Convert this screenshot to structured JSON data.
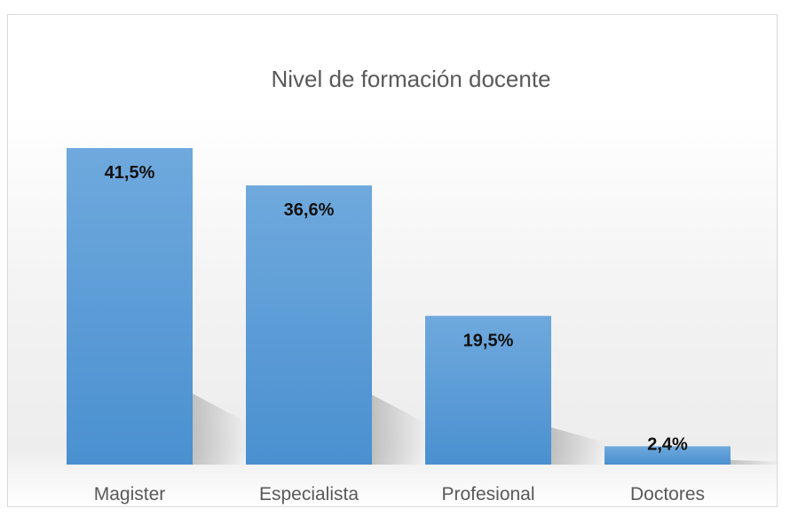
{
  "chart_data": {
    "type": "bar",
    "title": "Nivel de formación docente",
    "categories": [
      "Magister",
      "Especialista",
      "Profesional",
      "Doctores"
    ],
    "values": [
      41.5,
      36.6,
      19.5,
      2.4
    ],
    "value_labels": [
      "41,5%",
      "36,6%",
      "19,5%",
      "2,4%"
    ],
    "xlabel": "",
    "ylabel": "",
    "ylim": [
      0,
      41.5
    ],
    "grid": false,
    "legend": "none",
    "bar_color": "#5b9bd5",
    "bar_color_light": "#6fa9dd",
    "bar_color_dark": "#4a90d0"
  }
}
